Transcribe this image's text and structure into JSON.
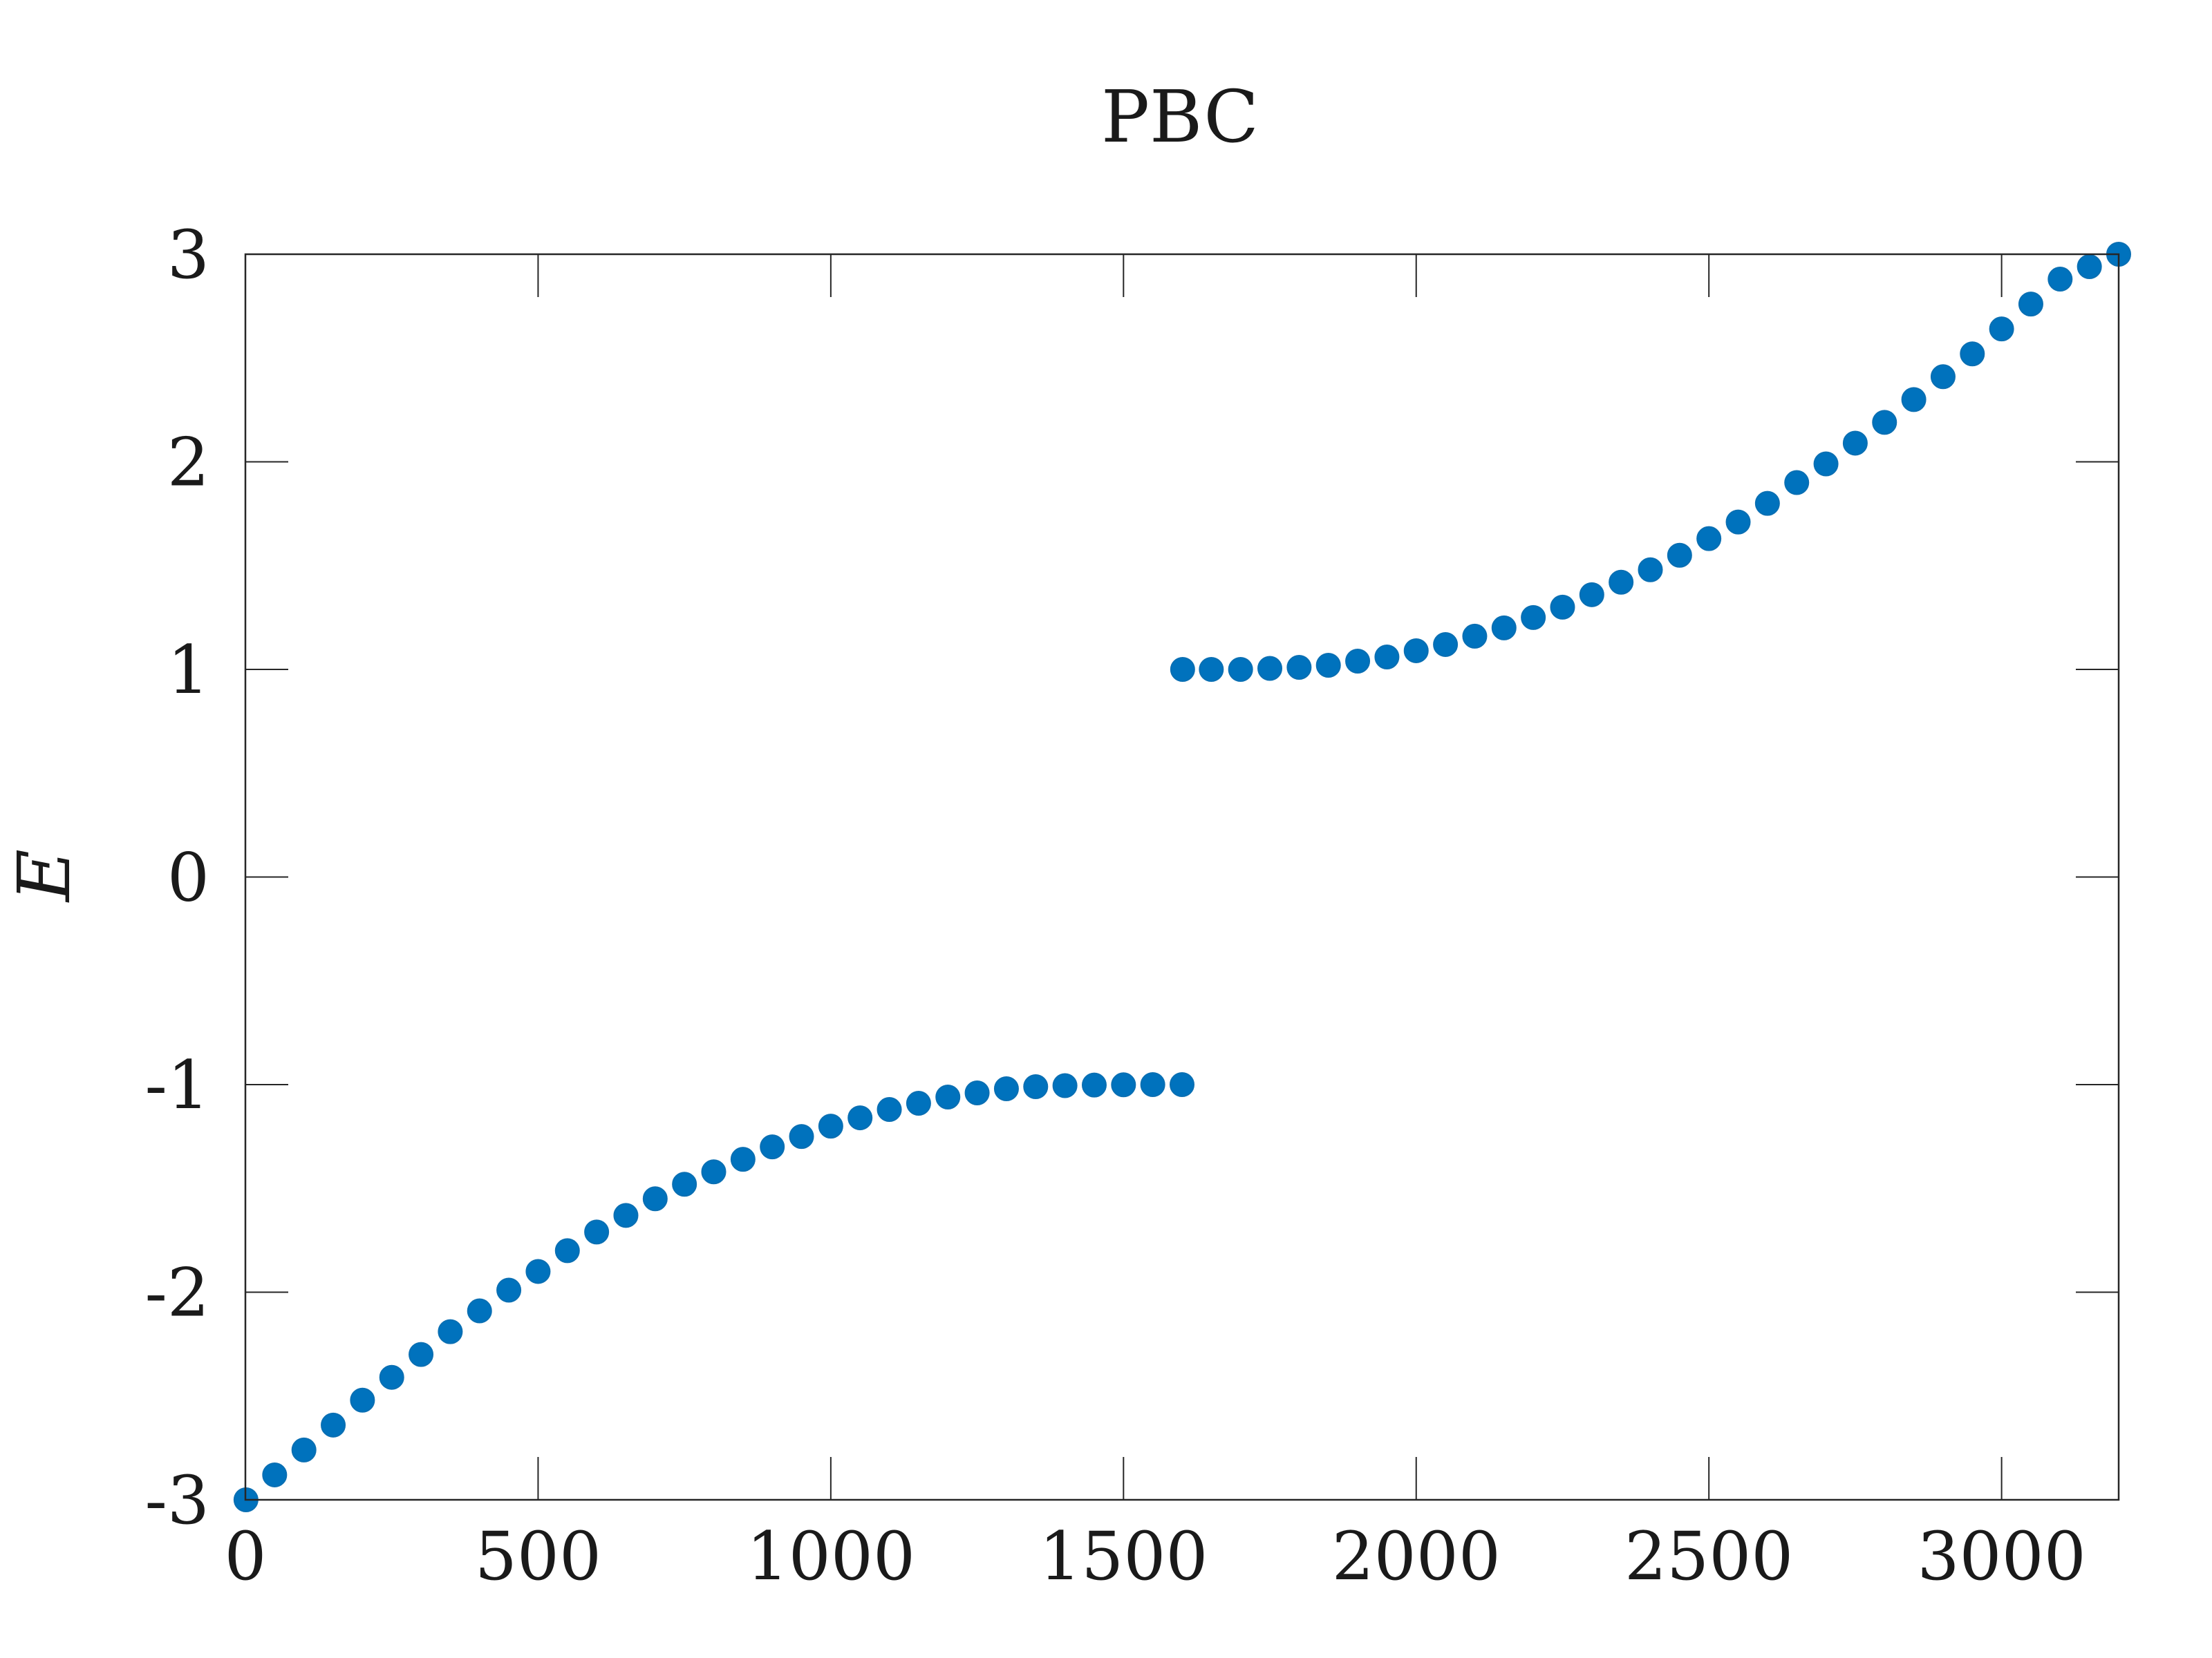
{
  "chart_data": {
    "type": "scatter",
    "title": "PBC",
    "xlabel": "",
    "ylabel": "E",
    "xlim": [
      0,
      3200
    ],
    "ylim": [
      -3,
      3
    ],
    "xticks": [
      0,
      500,
      1000,
      1500,
      2000,
      2500,
      3000
    ],
    "yticks": [
      -3,
      -2,
      -1,
      0,
      1,
      2,
      3
    ],
    "xtick_labels": [
      "0",
      "500",
      "1000",
      "1500",
      "2000",
      "2500",
      "3000"
    ],
    "ytick_labels": [
      "-3",
      "-2",
      "-1",
      "0",
      "1",
      "2",
      "3"
    ],
    "grid": false,
    "legend": "none",
    "marker_color": "#0072bd",
    "series": [
      {
        "x": [
          1,
          50,
          100,
          150,
          200,
          250,
          300,
          350,
          400,
          450,
          500,
          550,
          600,
          650,
          700,
          750,
          800,
          850,
          900,
          950,
          1000,
          1050,
          1100,
          1150,
          1200,
          1250,
          1300,
          1350,
          1400,
          1450,
          1500,
          1550,
          1600
        ],
        "y": [
          -3.0,
          -2.88,
          -2.76,
          -2.64,
          -2.52,
          -2.41,
          -2.3,
          -2.19,
          -2.09,
          -1.99,
          -1.9,
          -1.8,
          -1.71,
          -1.63,
          -1.55,
          -1.48,
          -1.42,
          -1.36,
          -1.3,
          -1.25,
          -1.2,
          -1.16,
          -1.12,
          -1.09,
          -1.06,
          -1.04,
          -1.02,
          -1.01,
          -1.005,
          -1.002,
          -1.001,
          -1.0,
          -1.0
        ]
      },
      {
        "x": [
          1601,
          1650,
          1700,
          1750,
          1800,
          1850,
          1900,
          1950,
          2000,
          2050,
          2100,
          2150,
          2200,
          2250,
          2300,
          2350,
          2400,
          2450,
          2500,
          2550,
          2600,
          2650,
          2700,
          2750,
          2800,
          2850,
          2900,
          2950,
          3000,
          3050,
          3100,
          3150,
          3200
        ],
        "y": [
          1.0,
          1.0,
          1.0,
          1.005,
          1.01,
          1.02,
          1.04,
          1.06,
          1.09,
          1.12,
          1.16,
          1.2,
          1.25,
          1.3,
          1.36,
          1.42,
          1.48,
          1.55,
          1.63,
          1.71,
          1.8,
          1.9,
          1.99,
          2.09,
          2.19,
          2.3,
          2.41,
          2.52,
          2.64,
          2.76,
          2.88,
          2.94,
          3.0
        ]
      }
    ]
  }
}
